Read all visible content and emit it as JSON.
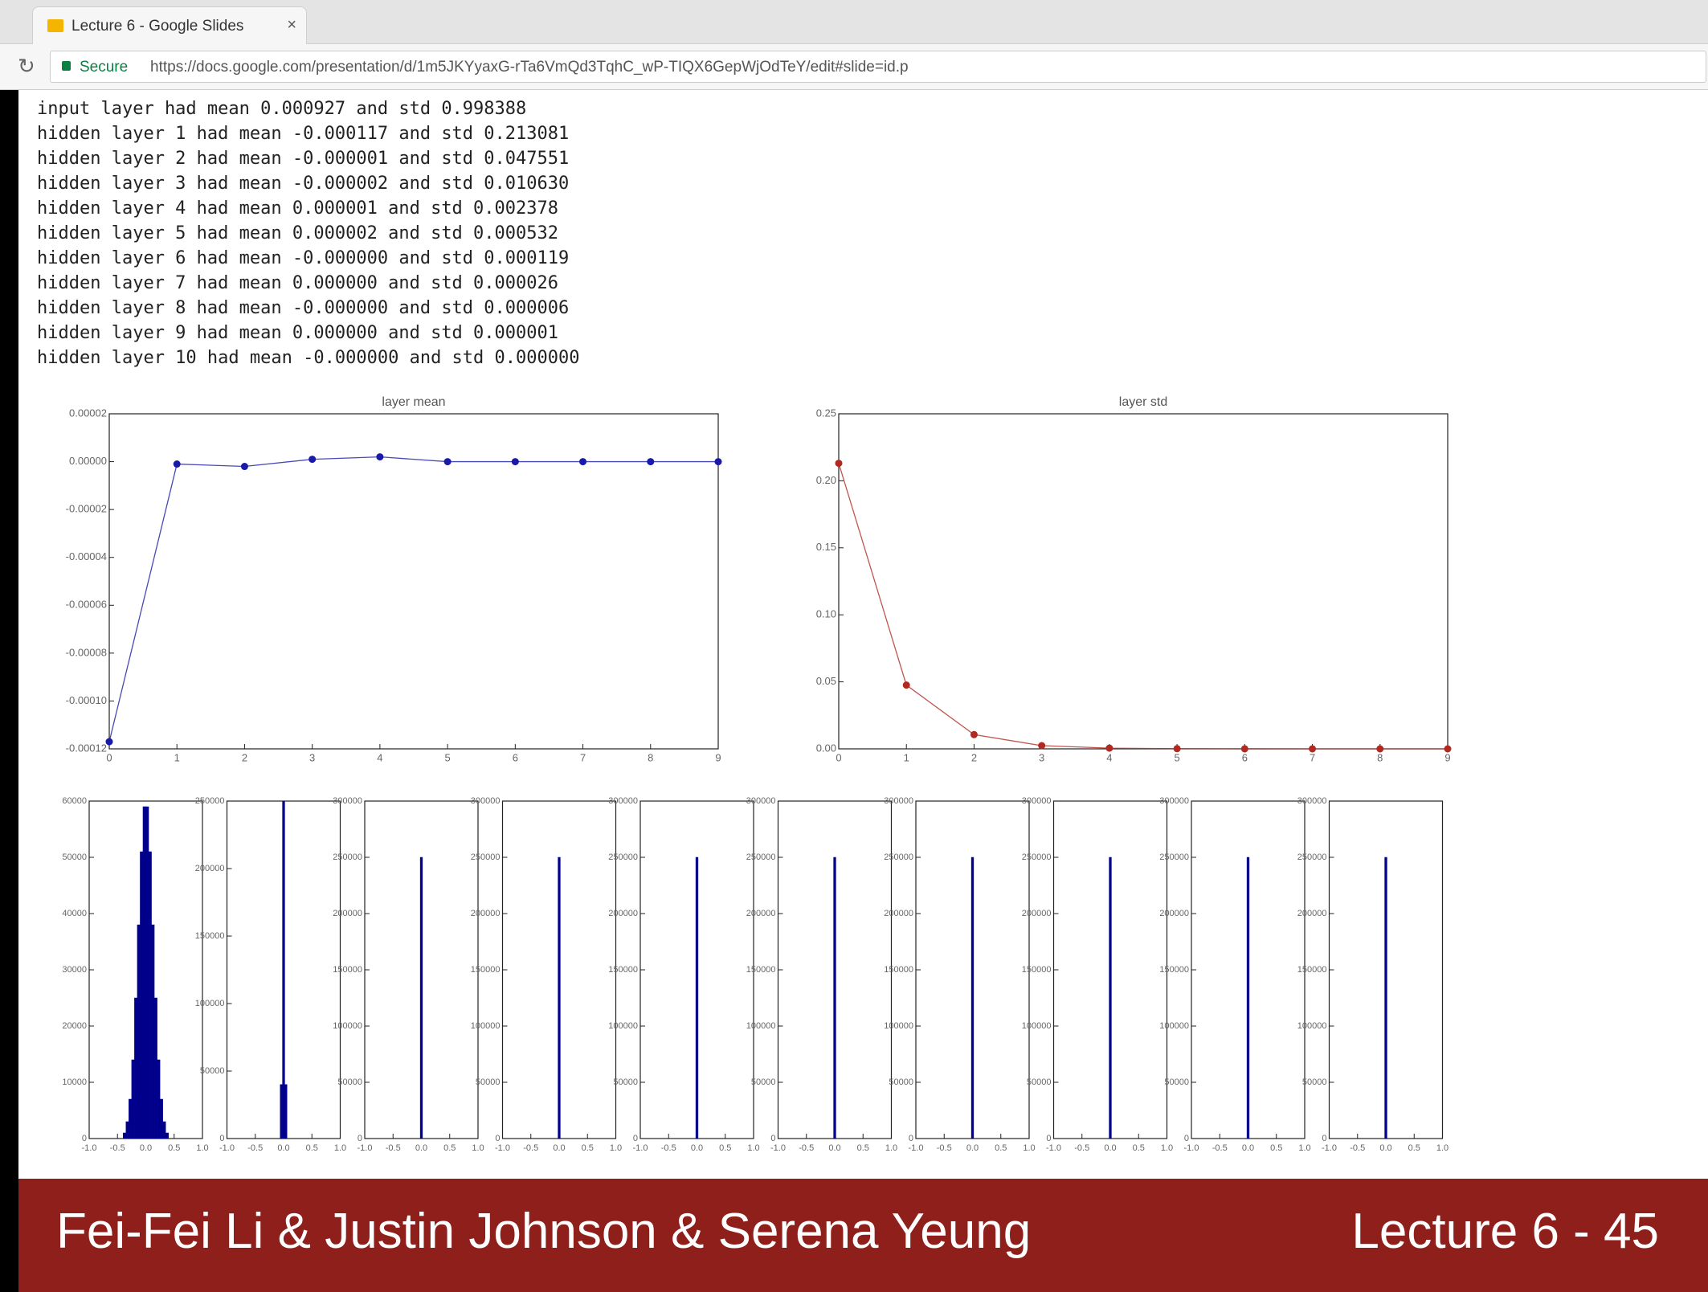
{
  "browser": {
    "tab_title": "Lecture 6 - Google Slides",
    "tab_close": "×",
    "secure": "Secure",
    "url": "https://docs.google.com/presentation/d/1m5JKYyaxG-rTa6VmQd3TqhC_wP-TIQX6GepWjOdTeY/edit#slide=id.p"
  },
  "console_lines": [
    "input layer had mean 0.000927 and std 0.998388",
    "hidden layer 1 had mean -0.000117 and std 0.213081",
    "hidden layer 2 had mean -0.000001 and std 0.047551",
    "hidden layer 3 had mean -0.000002 and std 0.010630",
    "hidden layer 4 had mean 0.000001 and std 0.002378",
    "hidden layer 5 had mean 0.000002 and std 0.000532",
    "hidden layer 6 had mean -0.000000 and std 0.000119",
    "hidden layer 7 had mean 0.000000 and std 0.000026",
    "hidden layer 8 had mean -0.000000 and std 0.000006",
    "hidden layer 9 had mean 0.000000 and std 0.000001",
    "hidden layer 10 had mean -0.000000 and std 0.000000"
  ],
  "chart_data": [
    {
      "type": "line",
      "title": "layer mean",
      "color": "#1a1aa8",
      "x": [
        0,
        1,
        2,
        3,
        4,
        5,
        6,
        7,
        8,
        9
      ],
      "values": [
        -0.000117,
        -1e-06,
        -2e-06,
        1e-06,
        2e-06,
        0,
        0,
        0,
        0,
        0
      ],
      "xlim": [
        0,
        9
      ],
      "xticks": [
        0,
        1,
        2,
        3,
        4,
        5,
        6,
        7,
        8,
        9
      ],
      "ylim": [
        -0.00012,
        2e-05
      ],
      "yticks": [
        {
          "value": -0.00012,
          "label": "-0.00012"
        },
        {
          "value": -0.0001,
          "label": "-0.00010"
        },
        {
          "value": -8e-05,
          "label": "-0.00008"
        },
        {
          "value": -6e-05,
          "label": "-0.00006"
        },
        {
          "value": -4e-05,
          "label": "-0.00004"
        },
        {
          "value": -2e-05,
          "label": "-0.00002"
        },
        {
          "value": 0,
          "label": "0.00000"
        },
        {
          "value": 2e-05,
          "label": "0.00002"
        }
      ]
    },
    {
      "type": "line",
      "title": "layer std",
      "color": "#b02a22",
      "x": [
        0,
        1,
        2,
        3,
        4,
        5,
        6,
        7,
        8,
        9
      ],
      "values": [
        0.213081,
        0.047551,
        0.01063,
        0.002378,
        0.000532,
        0.000119,
        2.6e-05,
        6e-06,
        1e-06,
        0
      ],
      "xlim": [
        0,
        9
      ],
      "xticks": [
        0,
        1,
        2,
        3,
        4,
        5,
        6,
        7,
        8,
        9
      ],
      "ylim": [
        0,
        0.25
      ],
      "yticks": [
        {
          "value": 0,
          "label": "0.00"
        },
        {
          "value": 0.05,
          "label": "0.05"
        },
        {
          "value": 0.1,
          "label": "0.10"
        },
        {
          "value": 0.15,
          "label": "0.15"
        },
        {
          "value": 0.2,
          "label": "0.20"
        },
        0.25
      ]
    },
    {
      "type": "histogram",
      "color": "#00008b",
      "bins": [
        -0.4,
        -0.35,
        -0.3,
        -0.25,
        -0.2,
        -0.15,
        -0.1,
        -0.05,
        0,
        0.05,
        0.1,
        0.15,
        0.2,
        0.25,
        0.3,
        0.35,
        0.4
      ],
      "values": [
        1000,
        3000,
        7000,
        14000,
        25000,
        38000,
        51000,
        59000,
        59000,
        51000,
        38000,
        25000,
        14000,
        7000,
        3000,
        1000
      ],
      "xlim": [
        -1,
        1
      ],
      "xticks": [
        {
          "value": -1,
          "label": "-1.0"
        },
        {
          "value": -0.5,
          "label": "-0.5"
        },
        {
          "value": 0,
          "label": "0.0"
        },
        0.5,
        {
          "value": 1,
          "label": "1.0"
        }
      ],
      "ylim": [
        0,
        60000
      ],
      "yticks": [
        0,
        10000,
        20000,
        30000,
        40000,
        50000,
        60000
      ]
    },
    {
      "type": "histogram",
      "color": "#00008b",
      "bins": [
        -0.06,
        -0.02,
        0.02,
        0.06
      ],
      "values": [
        40000,
        250000,
        40000
      ],
      "xlim": [
        -1,
        1
      ],
      "xticks": [
        {
          "value": -1,
          "label": "-1.0"
        },
        {
          "value": -0.5,
          "label": "-0.5"
        },
        {
          "value": 0,
          "label": "0.0"
        },
        0.5,
        {
          "value": 1,
          "label": "1.0"
        }
      ],
      "ylim": [
        0,
        250000
      ],
      "yticks": [
        0,
        50000,
        100000,
        150000,
        200000,
        250000
      ]
    },
    {
      "type": "histogram",
      "color": "#00008b",
      "bins": [
        -0.02,
        0.02
      ],
      "values": [
        250000
      ],
      "xlim": [
        -1,
        1
      ],
      "xticks": [
        {
          "value": -1,
          "label": "-1.0"
        },
        {
          "value": -0.5,
          "label": "-0.5"
        },
        {
          "value": 0,
          "label": "0.0"
        },
        0.5,
        {
          "value": 1,
          "label": "1.0"
        }
      ],
      "ylim": [
        0,
        300000
      ],
      "yticks": [
        0,
        50000,
        100000,
        150000,
        200000,
        250000,
        300000
      ]
    },
    {
      "type": "histogram",
      "color": "#00008b",
      "bins": [
        -0.02,
        0.02
      ],
      "values": [
        250000
      ],
      "xlim": [
        -1,
        1
      ],
      "xticks": [
        {
          "value": -1,
          "label": "-1.0"
        },
        {
          "value": -0.5,
          "label": "-0.5"
        },
        {
          "value": 0,
          "label": "0.0"
        },
        0.5,
        {
          "value": 1,
          "label": "1.0"
        }
      ],
      "ylim": [
        0,
        300000
      ],
      "yticks": [
        0,
        50000,
        100000,
        150000,
        200000,
        250000,
        300000
      ]
    },
    {
      "type": "histogram",
      "color": "#00008b",
      "bins": [
        -0.02,
        0.02
      ],
      "values": [
        250000
      ],
      "xlim": [
        -1,
        1
      ],
      "xticks": [
        {
          "value": -1,
          "label": "-1.0"
        },
        {
          "value": -0.5,
          "label": "-0.5"
        },
        {
          "value": 0,
          "label": "0.0"
        },
        0.5,
        {
          "value": 1,
          "label": "1.0"
        }
      ],
      "ylim": [
        0,
        300000
      ],
      "yticks": [
        0,
        50000,
        100000,
        150000,
        200000,
        250000,
        300000
      ]
    },
    {
      "type": "histogram",
      "color": "#00008b",
      "bins": [
        -0.02,
        0.02
      ],
      "values": [
        250000
      ],
      "xlim": [
        -1,
        1
      ],
      "xticks": [
        {
          "value": -1,
          "label": "-1.0"
        },
        {
          "value": -0.5,
          "label": "-0.5"
        },
        {
          "value": 0,
          "label": "0.0"
        },
        0.5,
        {
          "value": 1,
          "label": "1.0"
        }
      ],
      "ylim": [
        0,
        300000
      ],
      "yticks": [
        0,
        50000,
        100000,
        150000,
        200000,
        250000,
        300000
      ]
    },
    {
      "type": "histogram",
      "color": "#00008b",
      "bins": [
        -0.02,
        0.02
      ],
      "values": [
        250000
      ],
      "xlim": [
        -1,
        1
      ],
      "xticks": [
        {
          "value": -1,
          "label": "-1.0"
        },
        {
          "value": -0.5,
          "label": "-0.5"
        },
        {
          "value": 0,
          "label": "0.0"
        },
        0.5,
        {
          "value": 1,
          "label": "1.0"
        }
      ],
      "ylim": [
        0,
        300000
      ],
      "yticks": [
        0,
        50000,
        100000,
        150000,
        200000,
        250000,
        300000
      ]
    },
    {
      "type": "histogram",
      "color": "#00008b",
      "bins": [
        -0.02,
        0.02
      ],
      "values": [
        250000
      ],
      "xlim": [
        -1,
        1
      ],
      "xticks": [
        {
          "value": -1,
          "label": "-1.0"
        },
        {
          "value": -0.5,
          "label": "-0.5"
        },
        {
          "value": 0,
          "label": "0.0"
        },
        0.5,
        {
          "value": 1,
          "label": "1.0"
        }
      ],
      "ylim": [
        0,
        300000
      ],
      "yticks": [
        0,
        50000,
        100000,
        150000,
        200000,
        250000,
        300000
      ]
    },
    {
      "type": "histogram",
      "color": "#00008b",
      "bins": [
        -0.02,
        0.02
      ],
      "values": [
        250000
      ],
      "xlim": [
        -1,
        1
      ],
      "xticks": [
        {
          "value": -1,
          "label": "-1.0"
        },
        {
          "value": -0.5,
          "label": "-0.5"
        },
        {
          "value": 0,
          "label": "0.0"
        },
        0.5,
        {
          "value": 1,
          "label": "1.0"
        }
      ],
      "ylim": [
        0,
        300000
      ],
      "yticks": [
        0,
        50000,
        100000,
        150000,
        200000,
        250000,
        300000
      ]
    },
    {
      "type": "histogram",
      "color": "#00008b",
      "bins": [
        -0.02,
        0.02
      ],
      "values": [
        250000
      ],
      "xlim": [
        -1,
        1
      ],
      "xticks": [
        {
          "value": -1,
          "label": "-1.0"
        },
        {
          "value": -0.5,
          "label": "-0.5"
        },
        {
          "value": 0,
          "label": "0.0"
        },
        0.5,
        {
          "value": 1,
          "label": "1.0"
        }
      ],
      "ylim": [
        0,
        300000
      ],
      "yticks": [
        0,
        50000,
        100000,
        150000,
        200000,
        250000,
        300000
      ]
    }
  ],
  "footer": {
    "authors": "Fei-Fei Li & Justin Johnson & Serena Yeung",
    "lecture": "Lecture 6 - 45"
  }
}
